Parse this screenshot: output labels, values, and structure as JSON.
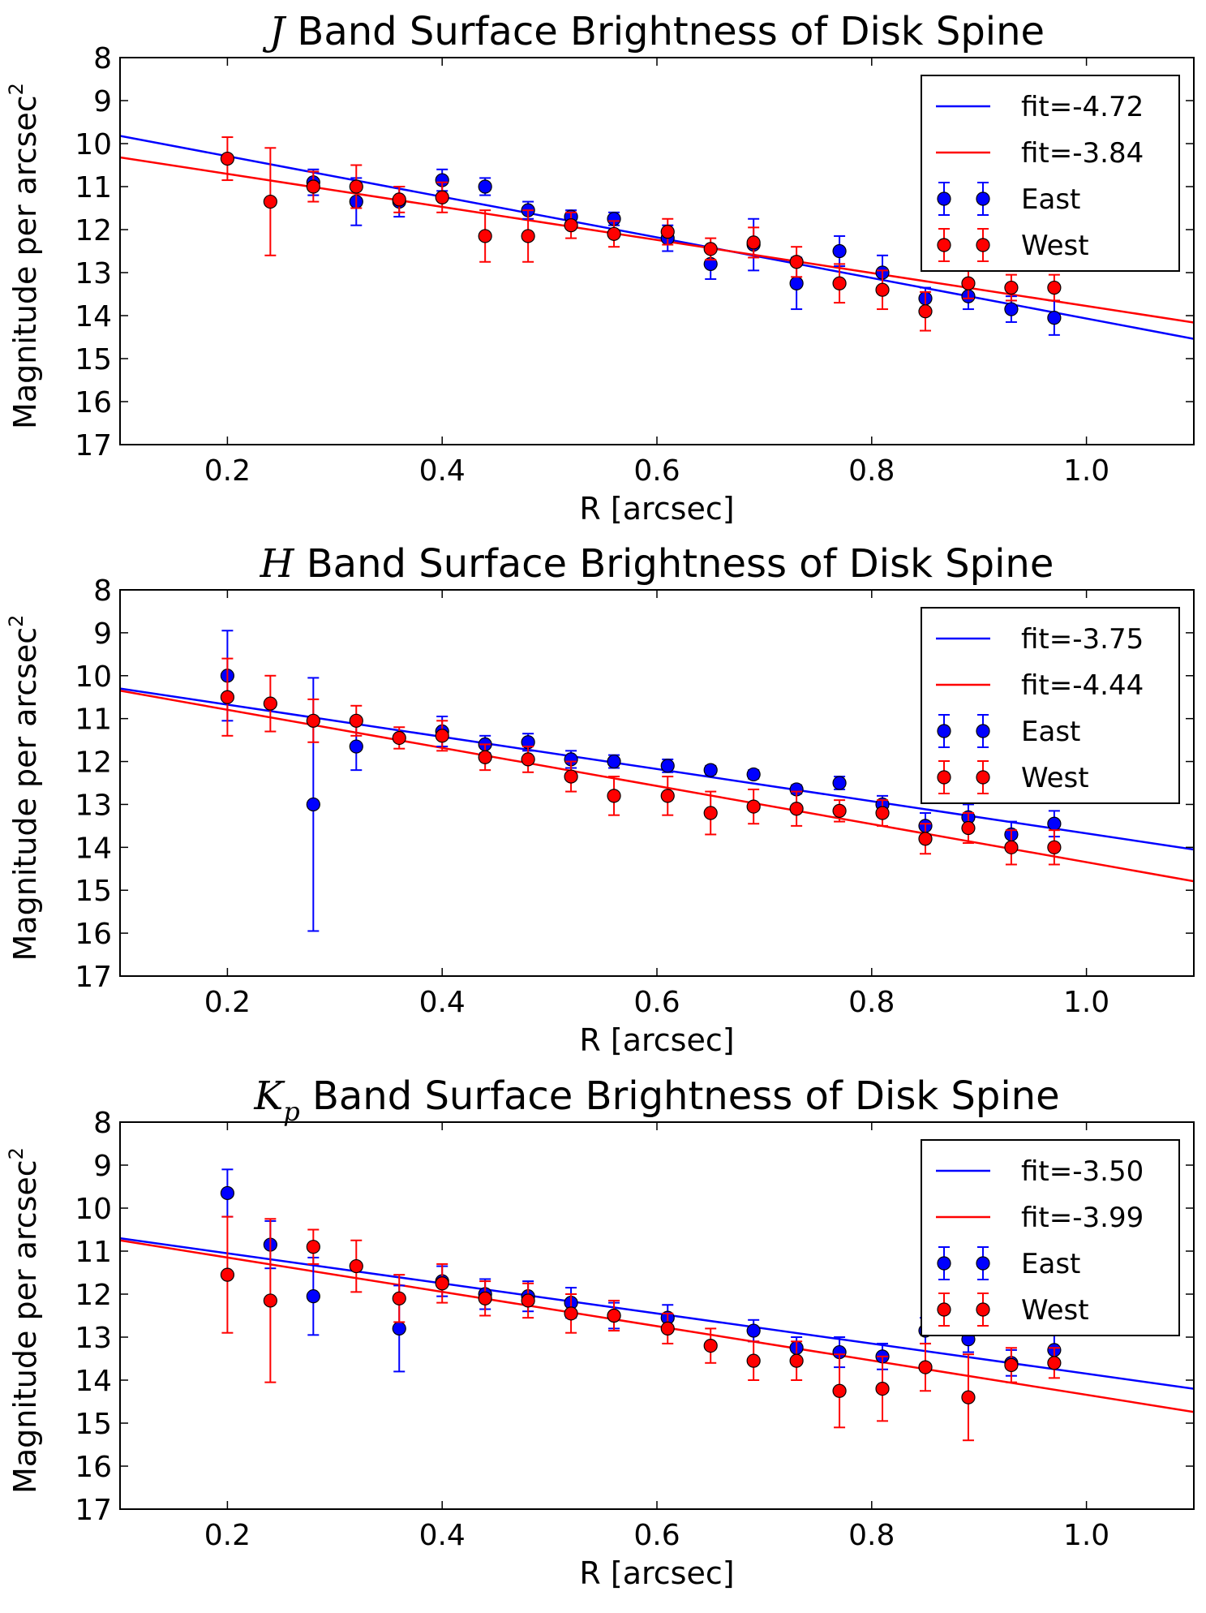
{
  "chart_data": [
    {
      "type": "scatter",
      "title_symbol": "J",
      "title_symbol_sub": "",
      "title_text": " Band Surface Brightness of Disk Spine",
      "xlabel": "R [arcsec]",
      "ylabel": "Magnitude per arcsec",
      "ylabel_sup": "2",
      "xlim": [
        0.1,
        1.1
      ],
      "ylim": [
        8,
        17
      ],
      "y_inverted": true,
      "x_ticks": [
        "0.2",
        "0.4",
        "0.6",
        "0.8",
        "1.0"
      ],
      "y_ticks": [
        "8",
        "9",
        "10",
        "11",
        "12",
        "13",
        "14",
        "15",
        "16",
        "17"
      ],
      "legend_position": "upper right",
      "series": [
        {
          "name": "fit=-4.72",
          "kind": "line",
          "color": "#0000ff",
          "points": [
            [
              0.1,
              9.82
            ],
            [
              1.1,
              14.54
            ]
          ]
        },
        {
          "name": "fit=-3.84",
          "kind": "line",
          "color": "#ff0000",
          "points": [
            [
              0.1,
              10.32
            ],
            [
              1.1,
              14.16
            ]
          ]
        },
        {
          "name": "East",
          "kind": "errorbar",
          "color": "#0000ff",
          "x": [
            0.28,
            0.32,
            0.36,
            0.4,
            0.44,
            0.48,
            0.52,
            0.56,
            0.61,
            0.65,
            0.69,
            0.73,
            0.77,
            0.81,
            0.85,
            0.89,
            0.93,
            0.97
          ],
          "y": [
            10.9,
            11.35,
            11.35,
            10.85,
            11.0,
            11.55,
            11.7,
            11.75,
            12.2,
            12.8,
            12.35,
            13.25,
            12.5,
            13.0,
            13.6,
            13.55,
            13.85,
            14.05
          ],
          "yerr": [
            0.3,
            0.55,
            0.35,
            0.25,
            0.2,
            0.2,
            0.15,
            0.15,
            0.3,
            0.35,
            0.6,
            0.6,
            0.35,
            0.4,
            0.25,
            0.3,
            0.3,
            0.4
          ]
        },
        {
          "name": "West",
          "kind": "errorbar",
          "color": "#ff0000",
          "x": [
            0.2,
            0.24,
            0.28,
            0.32,
            0.36,
            0.4,
            0.44,
            0.48,
            0.52,
            0.56,
            0.61,
            0.65,
            0.69,
            0.73,
            0.77,
            0.81,
            0.85,
            0.89,
            0.93,
            0.97
          ],
          "y": [
            10.35,
            11.35,
            11.0,
            11.0,
            11.3,
            11.25,
            12.15,
            12.15,
            11.9,
            12.1,
            12.05,
            12.45,
            12.3,
            12.75,
            13.25,
            13.4,
            13.9,
            13.25,
            13.35,
            13.35
          ],
          "yerr": [
            0.5,
            1.25,
            0.35,
            0.5,
            0.3,
            0.35,
            0.6,
            0.6,
            0.3,
            0.3,
            0.3,
            0.25,
            0.35,
            0.35,
            0.45,
            0.45,
            0.45,
            0.35,
            0.3,
            0.3
          ]
        }
      ]
    },
    {
      "type": "scatter",
      "title_symbol": "H",
      "title_symbol_sub": "",
      "title_text": " Band Surface Brightness of Disk Spine",
      "xlabel": "R [arcsec]",
      "ylabel": "Magnitude per arcsec",
      "ylabel_sup": "2",
      "xlim": [
        0.1,
        1.1
      ],
      "ylim": [
        8,
        17
      ],
      "y_inverted": true,
      "x_ticks": [
        "0.2",
        "0.4",
        "0.6",
        "0.8",
        "1.0"
      ],
      "y_ticks": [
        "8",
        "9",
        "10",
        "11",
        "12",
        "13",
        "14",
        "15",
        "16",
        "17"
      ],
      "legend_position": "upper right",
      "series": [
        {
          "name": "fit=-3.75",
          "kind": "line",
          "color": "#0000ff",
          "points": [
            [
              0.1,
              10.3
            ],
            [
              1.1,
              14.05
            ]
          ]
        },
        {
          "name": "fit=-4.44",
          "kind": "line",
          "color": "#ff0000",
          "points": [
            [
              0.1,
              10.35
            ],
            [
              1.1,
              14.79
            ]
          ]
        },
        {
          "name": "East",
          "kind": "errorbar",
          "color": "#0000ff",
          "x": [
            0.2,
            0.28,
            0.32,
            0.4,
            0.44,
            0.48,
            0.52,
            0.56,
            0.61,
            0.65,
            0.69,
            0.73,
            0.77,
            0.81,
            0.85,
            0.89,
            0.93,
            0.97
          ],
          "y": [
            10.0,
            13.0,
            11.65,
            11.3,
            11.6,
            11.55,
            11.95,
            12.0,
            12.1,
            12.2,
            12.3,
            12.65,
            12.5,
            13.0,
            13.5,
            13.3,
            13.7,
            13.45
          ],
          "yerr": [
            1.05,
            2.95,
            0.55,
            0.35,
            0.2,
            0.2,
            0.2,
            0.15,
            0.15,
            0.1,
            0.1,
            0.1,
            0.15,
            0.2,
            0.3,
            0.3,
            0.3,
            0.3
          ]
        },
        {
          "name": "West",
          "kind": "errorbar",
          "color": "#ff0000",
          "x": [
            0.2,
            0.24,
            0.28,
            0.32,
            0.36,
            0.4,
            0.44,
            0.48,
            0.52,
            0.56,
            0.61,
            0.65,
            0.69,
            0.73,
            0.77,
            0.81,
            0.85,
            0.89,
            0.93,
            0.97
          ],
          "y": [
            10.5,
            10.65,
            11.05,
            11.05,
            11.45,
            11.4,
            11.9,
            11.95,
            12.35,
            12.8,
            12.8,
            13.2,
            13.05,
            13.1,
            13.15,
            13.2,
            13.8,
            13.55,
            14.0,
            14.0
          ],
          "yerr": [
            0.9,
            0.65,
            0.5,
            0.35,
            0.25,
            0.35,
            0.3,
            0.3,
            0.35,
            0.45,
            0.45,
            0.5,
            0.4,
            0.4,
            0.25,
            0.3,
            0.35,
            0.35,
            0.4,
            0.4
          ]
        }
      ]
    },
    {
      "type": "scatter",
      "title_symbol": "K",
      "title_symbol_sub": "p",
      "title_text": " Band Surface Brightness of Disk Spine",
      "xlabel": "R [arcsec]",
      "ylabel": "Magnitude per arcsec",
      "ylabel_sup": "2",
      "xlim": [
        0.1,
        1.1
      ],
      "ylim": [
        8,
        17
      ],
      "y_inverted": true,
      "x_ticks": [
        "0.2",
        "0.4",
        "0.6",
        "0.8",
        "1.0"
      ],
      "y_ticks": [
        "8",
        "9",
        "10",
        "11",
        "12",
        "13",
        "14",
        "15",
        "16",
        "17"
      ],
      "legend_position": "upper right",
      "series": [
        {
          "name": "fit=-3.50",
          "kind": "line",
          "color": "#0000ff",
          "points": [
            [
              0.1,
              10.7
            ],
            [
              1.1,
              14.2
            ]
          ]
        },
        {
          "name": "fit=-3.99",
          "kind": "line",
          "color": "#ff0000",
          "points": [
            [
              0.1,
              10.75
            ],
            [
              1.1,
              14.74
            ]
          ]
        },
        {
          "name": "East",
          "kind": "errorbar",
          "color": "#0000ff",
          "x": [
            0.2,
            0.24,
            0.28,
            0.36,
            0.4,
            0.44,
            0.48,
            0.52,
            0.56,
            0.61,
            0.69,
            0.73,
            0.77,
            0.81,
            0.85,
            0.89,
            0.93,
            0.97
          ],
          "y": [
            9.65,
            10.85,
            12.05,
            12.8,
            11.7,
            12.0,
            12.05,
            12.2,
            12.5,
            12.55,
            12.85,
            13.25,
            13.35,
            13.45,
            12.85,
            13.05,
            13.6,
            13.3
          ],
          "yerr": [
            0.55,
            0.55,
            0.9,
            1.0,
            0.35,
            0.35,
            0.35,
            0.35,
            0.3,
            0.3,
            0.25,
            0.25,
            0.35,
            0.3,
            0.3,
            0.3,
            0.3,
            0.35
          ]
        },
        {
          "name": "West",
          "kind": "errorbar",
          "color": "#ff0000",
          "x": [
            0.2,
            0.24,
            0.28,
            0.32,
            0.36,
            0.4,
            0.44,
            0.48,
            0.52,
            0.56,
            0.61,
            0.65,
            0.69,
            0.73,
            0.77,
            0.81,
            0.85,
            0.89,
            0.93,
            0.97
          ],
          "y": [
            11.55,
            12.15,
            10.9,
            11.35,
            12.1,
            11.75,
            12.1,
            12.15,
            12.45,
            12.5,
            12.8,
            13.2,
            13.55,
            13.55,
            14.25,
            14.2,
            13.7,
            14.4,
            13.65,
            13.6
          ],
          "yerr": [
            1.35,
            1.9,
            0.4,
            0.6,
            0.55,
            0.45,
            0.4,
            0.4,
            0.45,
            0.35,
            0.35,
            0.4,
            0.45,
            0.45,
            0.85,
            0.75,
            0.55,
            1.0,
            0.4,
            0.35
          ]
        }
      ]
    }
  ]
}
